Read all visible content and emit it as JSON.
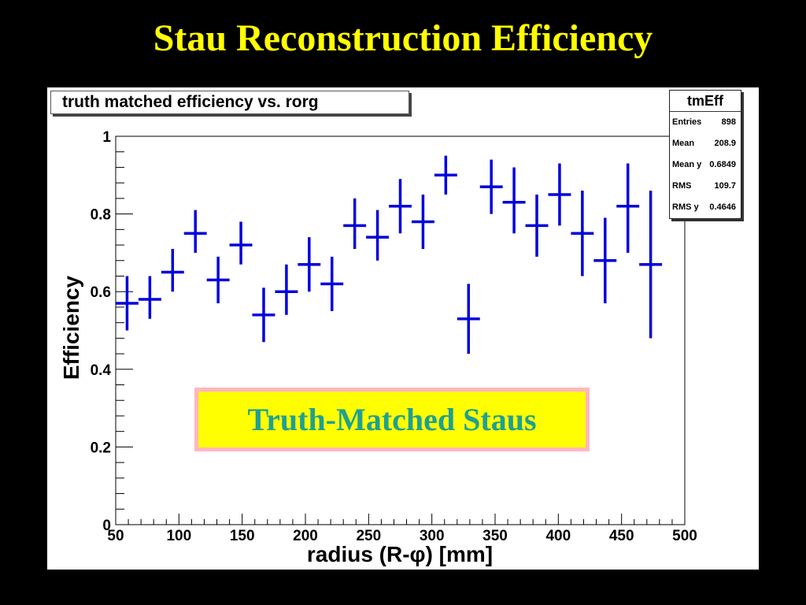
{
  "slide": {
    "title": "Stau Reconstruction Efficiency"
  },
  "histogram": {
    "title": "truth matched efficiency vs. rorg"
  },
  "stats": {
    "name": "tmEff",
    "rows": [
      {
        "label": "Entries",
        "value": "898"
      },
      {
        "label": "Mean",
        "value": "208.9"
      },
      {
        "label": "Mean y",
        "value": "0.6849"
      },
      {
        "label": "RMS",
        "value": "109.7"
      },
      {
        "label": "RMS y",
        "value": "0.4646"
      }
    ]
  },
  "callout": {
    "text": "Truth-Matched Staus"
  },
  "colors": {
    "background": "#000000",
    "title": "#ffff00",
    "series": "#0000dd",
    "callout_fill": "#ffff00",
    "callout_border": "#ffb6c1",
    "callout_text": "#20a090"
  },
  "chart_data": {
    "type": "scatter",
    "title": "truth matched efficiency vs. rorg",
    "xlabel": "radius (R-φ) [mm]",
    "ylabel": "Efficiency",
    "xlim": [
      50,
      500
    ],
    "ylim": [
      0,
      1
    ],
    "x_ticks": [
      "50",
      "100",
      "150",
      "200",
      "250",
      "300",
      "350",
      "400",
      "450",
      "500"
    ],
    "y_ticks": [
      "0",
      "0.2",
      "0.4",
      "0.6",
      "0.8",
      "1"
    ],
    "grid": false,
    "series": [
      {
        "x": [
          59,
          77,
          95,
          113,
          131,
          149,
          167,
          185,
          203,
          221,
          239,
          257,
          275,
          293,
          311,
          329,
          347,
          365,
          383,
          401,
          419,
          437,
          455,
          473
        ],
        "y": [
          0.57,
          0.58,
          0.65,
          0.75,
          0.63,
          0.72,
          0.54,
          0.6,
          0.67,
          0.62,
          0.77,
          0.74,
          0.82,
          0.78,
          0.9,
          0.53,
          0.87,
          0.83,
          0.77,
          0.85,
          0.75,
          0.68,
          0.82,
          0.67
        ],
        "y_err_low": [
          0.07,
          0.05,
          0.05,
          0.05,
          0.06,
          0.05,
          0.07,
          0.06,
          0.07,
          0.07,
          0.06,
          0.06,
          0.07,
          0.07,
          0.05,
          0.09,
          0.07,
          0.08,
          0.08,
          0.08,
          0.11,
          0.11,
          0.12,
          0.19
        ],
        "y_err_high": [
          0.07,
          0.06,
          0.06,
          0.06,
          0.06,
          0.06,
          0.07,
          0.07,
          0.07,
          0.07,
          0.07,
          0.07,
          0.07,
          0.07,
          0.05,
          0.09,
          0.07,
          0.09,
          0.08,
          0.08,
          0.11,
          0.11,
          0.11,
          0.19
        ],
        "x_half_width": 9
      }
    ]
  }
}
